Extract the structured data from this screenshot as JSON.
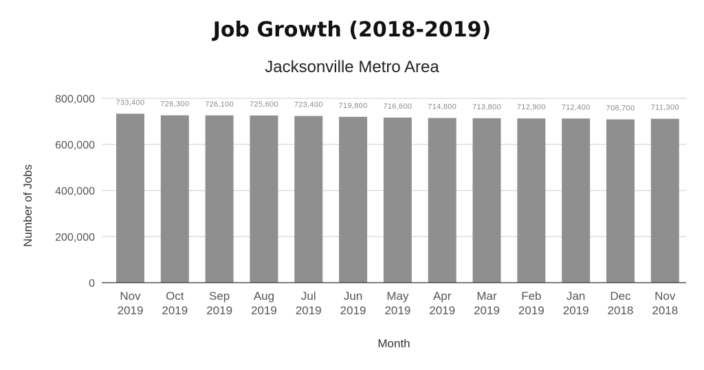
{
  "chart_data": {
    "type": "bar",
    "title": "Job Growth (2018-2019)",
    "subtitle": "Jacksonville Metro Area",
    "xlabel": "Month",
    "ylabel": "Number of Jobs",
    "ylim": [
      0,
      800000
    ],
    "yticks": [
      0,
      200000,
      400000,
      600000,
      800000
    ],
    "ytick_labels": [
      "0",
      "200,000",
      "400,000",
      "600,000",
      "800,000"
    ],
    "categories": [
      [
        "Nov",
        "2019"
      ],
      [
        "Oct",
        "2019"
      ],
      [
        "Sep",
        "2019"
      ],
      [
        "Aug",
        "2019"
      ],
      [
        "Jul",
        "2019"
      ],
      [
        "Jun",
        "2019"
      ],
      [
        "May",
        "2019"
      ],
      [
        "Apr",
        "2019"
      ],
      [
        "Mar",
        "2019"
      ],
      [
        "Feb",
        "2019"
      ],
      [
        "Jan",
        "2019"
      ],
      [
        "Dec",
        "2018"
      ],
      [
        "Nov",
        "2018"
      ]
    ],
    "values": [
      733400,
      726300,
      726100,
      725600,
      723400,
      719800,
      716600,
      714800,
      713800,
      712900,
      712400,
      708700,
      711300
    ],
    "data_labels": [
      "733,400",
      "726,300",
      "726,100",
      "725,600",
      "723,400",
      "719,800",
      "716,600",
      "714,800",
      "713,800",
      "712,900",
      "712,400",
      "708,700",
      "711,300"
    ],
    "bar_color": "#8f8f8f",
    "grid": true,
    "legend": "none"
  }
}
